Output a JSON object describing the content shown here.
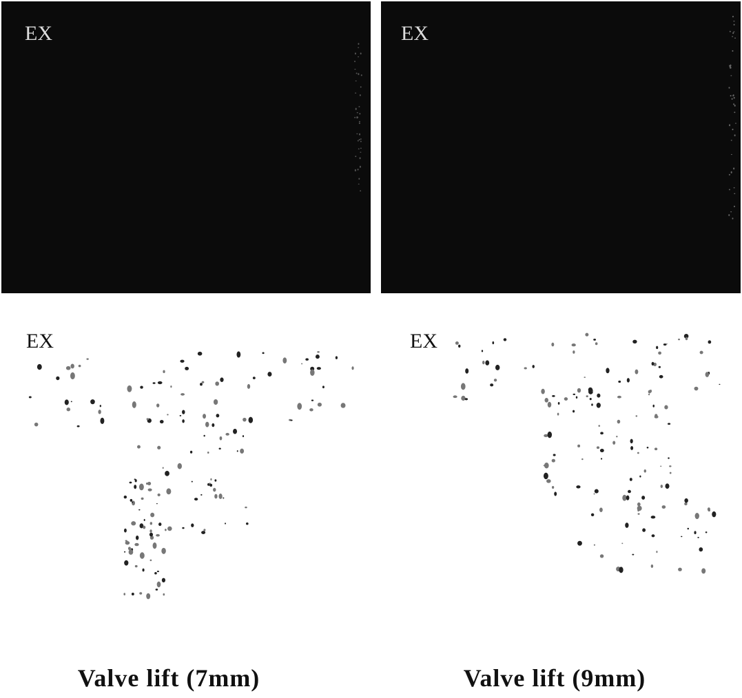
{
  "panels": [
    {
      "label": "EX"
    },
    {
      "label": "EX"
    },
    {
      "label": "EX"
    },
    {
      "label": "EX"
    }
  ],
  "captions": [
    "Valve lift (7mm)",
    "Valve lift (9mm)"
  ]
}
